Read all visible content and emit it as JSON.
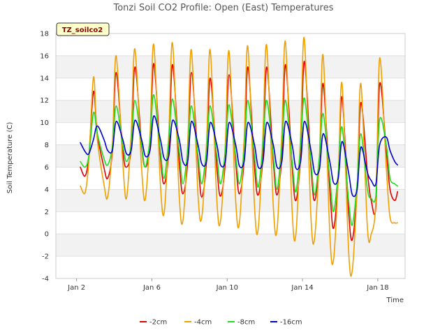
{
  "chart_data": {
    "type": "line",
    "title": "Tonzi Soil CO2 Profile: Open (East) Temperatures",
    "badge": "TZ_soilco2",
    "xlabel": "Time",
    "ylabel": "Soil Temperature (C)",
    "xlim": [
      0.9,
      19.45
    ],
    "ylim": [
      -4,
      18
    ],
    "y_ticks": [
      -4,
      -2,
      0,
      2,
      4,
      6,
      8,
      10,
      12,
      14,
      16,
      18
    ],
    "x_ticks": [
      {
        "value": 2,
        "label": "Jan 2"
      },
      {
        "value": 6,
        "label": "Jan 6"
      },
      {
        "value": 10,
        "label": "Jan 10"
      },
      {
        "value": 14,
        "label": "Jan 14"
      },
      {
        "value": 18,
        "label": "Jan 18"
      }
    ],
    "grid": "horizontal alternating bands",
    "legend_position": "bottom",
    "series": [
      {
        "name": "-2cm",
        "color": "#e00000",
        "x": [
          2.2,
          2.45,
          2.65,
          2.9,
          3.1,
          3.45,
          3.65,
          3.9,
          4.1,
          4.45,
          4.65,
          4.9,
          5.1,
          5.45,
          5.65,
          5.9,
          6.1,
          6.45,
          6.65,
          6.9,
          7.1,
          7.45,
          7.65,
          7.9,
          8.1,
          8.45,
          8.65,
          8.9,
          9.1,
          9.45,
          9.65,
          9.9,
          10.1,
          10.45,
          10.65,
          10.9,
          11.1,
          11.45,
          11.65,
          11.9,
          12.1,
          12.45,
          12.65,
          12.9,
          13.1,
          13.45,
          13.65,
          13.9,
          14.1,
          14.45,
          14.65,
          14.9,
          15.1,
          15.45,
          15.65,
          15.9,
          16.1,
          16.45,
          16.65,
          16.9,
          17.1,
          17.45,
          17.65,
          17.9,
          18.1,
          18.45,
          18.65,
          18.9,
          19.05
        ],
        "y": [
          6.0,
          5.2,
          7.0,
          12.8,
          9.0,
          6.0,
          5.0,
          7.4,
          14.5,
          7.5,
          6.0,
          7.7,
          15.0,
          8.0,
          6.0,
          8.0,
          15.3,
          7.0,
          4.5,
          7.5,
          15.2,
          6.5,
          3.6,
          6.5,
          14.5,
          6.5,
          3.3,
          6.5,
          14.0,
          6.0,
          3.4,
          6.5,
          14.3,
          6.5,
          3.6,
          6.7,
          15.0,
          6.0,
          3.5,
          7.0,
          15.0,
          6.5,
          3.5,
          7.0,
          15.2,
          6.0,
          3.0,
          7.0,
          15.5,
          6.0,
          3.0,
          6.8,
          13.5,
          4.0,
          0.5,
          5.0,
          12.3,
          2.0,
          -0.5,
          4.0,
          11.8,
          5.5,
          3.0,
          2.5,
          13.5,
          7.5,
          4.0,
          3.0,
          3.8
        ]
      },
      {
        "name": "-4cm",
        "color": "#f0a000",
        "x": [
          2.2,
          2.45,
          2.65,
          2.9,
          3.1,
          3.45,
          3.65,
          3.9,
          4.1,
          4.45,
          4.65,
          4.9,
          5.1,
          5.45,
          5.65,
          5.9,
          6.1,
          6.45,
          6.65,
          6.9,
          7.1,
          7.45,
          7.65,
          7.9,
          8.1,
          8.45,
          8.65,
          8.9,
          9.1,
          9.45,
          9.65,
          9.9,
          10.1,
          10.45,
          10.65,
          10.9,
          11.1,
          11.45,
          11.65,
          11.9,
          12.1,
          12.45,
          12.65,
          12.9,
          13.1,
          13.45,
          13.65,
          13.9,
          14.1,
          14.45,
          14.65,
          14.9,
          15.1,
          15.45,
          15.65,
          15.9,
          16.1,
          16.45,
          16.65,
          16.9,
          17.1,
          17.45,
          17.65,
          17.9,
          18.1,
          18.45,
          18.65,
          18.9,
          19.05
        ],
        "y": [
          4.3,
          3.7,
          6.5,
          14.1,
          8.5,
          4.5,
          3.3,
          8.0,
          16.0,
          6.5,
          3.2,
          9.0,
          16.6,
          6.0,
          3.1,
          9.0,
          17.0,
          4.5,
          1.9,
          9.0,
          17.1,
          3.5,
          1.2,
          8.0,
          16.5,
          3.5,
          1.5,
          8.0,
          16.5,
          3.0,
          1.2,
          8.0,
          16.4,
          3.0,
          1.0,
          8.5,
          16.8,
          2.5,
          0.5,
          9.0,
          16.9,
          2.5,
          0.4,
          9.0,
          17.2,
          2.0,
          0.0,
          9.0,
          17.5,
          1.5,
          -0.3,
          7.0,
          16.0,
          0.0,
          -2.3,
          5.0,
          13.5,
          -1.5,
          -3.2,
          4.0,
          13.5,
          0.5,
          0.0,
          3.0,
          15.8,
          6.0,
          1.5,
          1.0,
          1.0
        ]
      },
      {
        "name": "-8cm",
        "color": "#22dd22",
        "x": [
          2.2,
          2.45,
          2.65,
          2.9,
          3.1,
          3.45,
          3.65,
          3.9,
          4.1,
          4.45,
          4.65,
          4.9,
          5.1,
          5.45,
          5.65,
          5.9,
          6.1,
          6.45,
          6.65,
          6.9,
          7.1,
          7.45,
          7.65,
          7.9,
          8.1,
          8.45,
          8.65,
          8.9,
          9.1,
          9.45,
          9.65,
          9.9,
          10.1,
          10.45,
          10.65,
          10.9,
          11.1,
          11.45,
          11.65,
          11.9,
          12.1,
          12.45,
          12.65,
          12.9,
          13.1,
          13.45,
          13.65,
          13.9,
          14.1,
          14.45,
          14.65,
          14.9,
          15.1,
          15.45,
          15.65,
          15.9,
          16.1,
          16.45,
          16.65,
          16.9,
          17.1,
          17.45,
          17.65,
          17.9,
          18.1,
          18.45,
          18.65,
          18.9,
          19.05
        ],
        "y": [
          6.5,
          6.0,
          7.0,
          10.9,
          9.0,
          6.8,
          6.2,
          7.8,
          11.5,
          8.0,
          6.5,
          8.0,
          12.0,
          8.0,
          6.0,
          8.5,
          12.5,
          7.5,
          5.0,
          8.5,
          12.1,
          7.5,
          4.5,
          7.5,
          11.5,
          7.0,
          4.5,
          7.5,
          11.5,
          7.0,
          4.5,
          7.5,
          11.6,
          7.0,
          4.5,
          7.5,
          12.0,
          7.0,
          4.2,
          8.0,
          12.0,
          7.0,
          4.0,
          8.0,
          12.0,
          6.5,
          3.8,
          8.0,
          12.2,
          6.5,
          3.5,
          7.0,
          10.8,
          5.0,
          2.0,
          5.5,
          9.6,
          3.0,
          0.8,
          4.5,
          9.0,
          4.0,
          3.2,
          3.5,
          10.3,
          8.0,
          5.0,
          4.5,
          4.3
        ]
      },
      {
        "name": "-16cm",
        "color": "#0000cc",
        "x": [
          2.2,
          2.45,
          2.65,
          2.9,
          3.1,
          3.45,
          3.65,
          3.9,
          4.1,
          4.45,
          4.65,
          4.9,
          5.1,
          5.45,
          5.65,
          5.9,
          6.1,
          6.45,
          6.65,
          6.9,
          7.1,
          7.45,
          7.65,
          7.9,
          8.1,
          8.45,
          8.65,
          8.9,
          9.1,
          9.45,
          9.65,
          9.9,
          10.1,
          10.45,
          10.65,
          10.9,
          11.1,
          11.45,
          11.65,
          11.9,
          12.1,
          12.45,
          12.65,
          12.9,
          13.1,
          13.45,
          13.65,
          13.9,
          14.1,
          14.45,
          14.65,
          14.9,
          15.1,
          15.45,
          15.65,
          15.9,
          16.1,
          16.45,
          16.65,
          16.9,
          17.1,
          17.45,
          17.65,
          17.9,
          18.1,
          18.45,
          18.65,
          18.9,
          19.05
        ],
        "y": [
          8.2,
          7.4,
          7.2,
          8.5,
          9.7,
          8.5,
          7.5,
          7.5,
          10.1,
          8.5,
          7.2,
          7.5,
          10.2,
          8.5,
          7.0,
          7.5,
          10.6,
          8.5,
          6.8,
          7.0,
          10.2,
          8.5,
          6.5,
          6.5,
          10.1,
          8.0,
          6.3,
          6.5,
          10.0,
          8.0,
          6.2,
          6.5,
          10.0,
          8.0,
          6.1,
          6.5,
          10.0,
          8.0,
          6.0,
          6.5,
          10.0,
          8.0,
          6.0,
          6.5,
          10.1,
          8.0,
          5.9,
          6.5,
          10.1,
          7.5,
          5.5,
          5.8,
          9.0,
          6.5,
          4.6,
          5.0,
          8.3,
          5.5,
          3.5,
          4.0,
          7.8,
          5.5,
          4.8,
          4.5,
          8.0,
          8.7,
          7.5,
          6.5,
          6.2
        ]
      }
    ]
  }
}
